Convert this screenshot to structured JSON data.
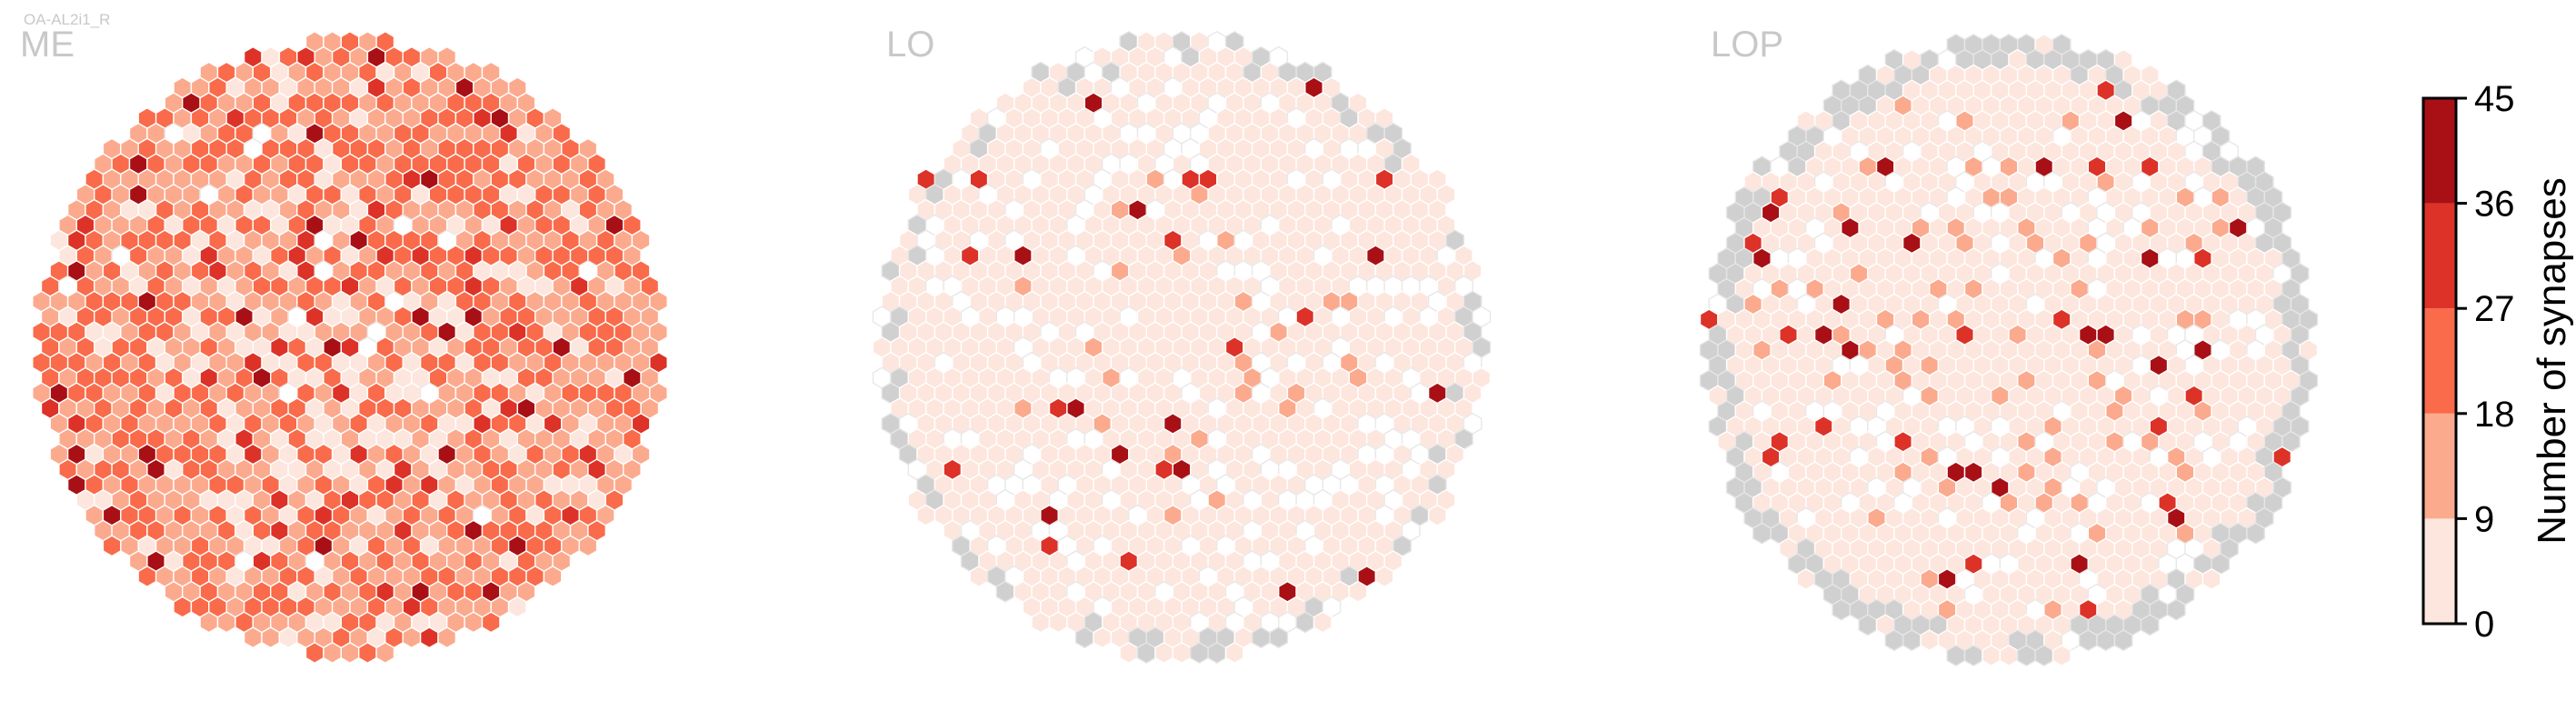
{
  "chart_data": {
    "type": "heatmap",
    "cell_label": "OA-AL2i1_R",
    "panels": [
      {
        "title": "ME",
        "seed": 11,
        "mean": 16,
        "spread": 13,
        "hot_prob": 0.05,
        "missing_prob": 0.0,
        "rim_missing": 0.0,
        "empty_prob": 0.02
      },
      {
        "title": "LO",
        "seed": 29,
        "mean": 4,
        "spread": 6,
        "hot_prob": 0.03,
        "missing_prob": 0.0,
        "rim_missing": 0.3,
        "empty_prob": 0.16
      },
      {
        "title": "LOP",
        "seed": 47,
        "mean": 5,
        "spread": 6,
        "hot_prob": 0.04,
        "missing_prob": 0.0,
        "rim_missing": 0.75,
        "empty_prob": 0.12
      }
    ],
    "colorbar": {
      "label": "Number of synapses",
      "ticks": [
        0,
        9,
        18,
        27,
        36,
        45
      ],
      "bins": [
        "#fde6dd",
        "#fcaa8e",
        "#f96b4a",
        "#dd3228",
        "#a81016"
      ],
      "missing_color": "#d0d0d0",
      "empty_color": "#ffffff"
    }
  }
}
